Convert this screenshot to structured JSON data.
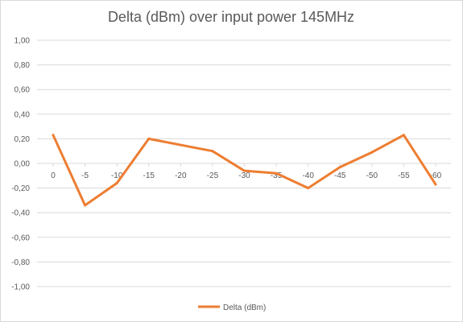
{
  "chart_data": {
    "type": "line",
    "title": "Delta (dBm) over input power 145MHz",
    "xlabel": "",
    "ylabel": "",
    "categories": [
      "0",
      "-5",
      "-10",
      "-15",
      "-20",
      "-25",
      "-30",
      "-35",
      "-40",
      "-45",
      "-50",
      "-55",
      "-60"
    ],
    "y_tick_labels": [
      "1,00",
      "0,80",
      "0,60",
      "0,40",
      "0,20",
      "0,00",
      "-0,20",
      "-0,40",
      "-0,60",
      "-0,80",
      "-1,00"
    ],
    "ylim": [
      -1.0,
      1.0
    ],
    "ystep": 0.2,
    "grid": true,
    "legend_position": "bottom",
    "series": [
      {
        "name": "Delta (dBm)",
        "color": "#ed7d31",
        "values": [
          0.23,
          -0.34,
          -0.16,
          0.2,
          0.15,
          0.1,
          -0.06,
          -0.08,
          -0.2,
          -0.03,
          0.09,
          0.23,
          -0.17
        ]
      }
    ]
  }
}
